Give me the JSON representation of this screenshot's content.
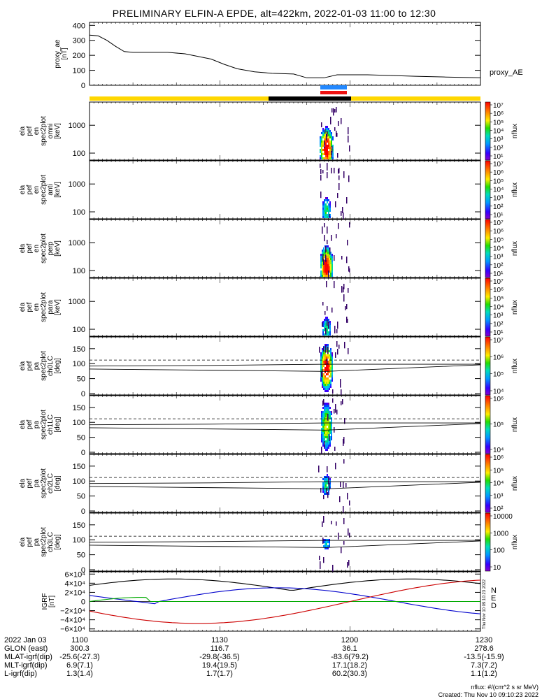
{
  "title": "PRELIMINARY ELFIN-A EPDE, alt=422km, 2022-01-03 11:00 to 12:30",
  "chart_data": {
    "type": "line",
    "time_range": [
      "11:00",
      "12:30"
    ],
    "panels": [
      {
        "id": "proxy_ae",
        "ylabel": [
          "proxy_ae",
          "[nT]"
        ],
        "yticks": [
          0,
          100,
          200,
          300,
          400
        ],
        "ylim": [
          0,
          420
        ],
        "series_label": "proxy_AE",
        "series": [
          {
            "name": "proxy_AE",
            "x": [
              0,
              2,
              4,
              6,
              8,
              10,
              13,
              18,
              22,
              28,
              31,
              34,
              38,
              42,
              47,
              50,
              52,
              54,
              57,
              64,
              70,
              75,
              82,
              90
            ],
            "y": [
              335,
              330,
              300,
              260,
              225,
              220,
              220,
              220,
              210,
              175,
              140,
              110,
              90,
              80,
              75,
              50,
              50,
              50,
              70,
              70,
              65,
              60,
              55,
              50
            ]
          }
        ]
      },
      {
        "id": "omni",
        "ylabel": [
          "ela",
          "pef",
          "en",
          "spec2plot",
          "omni",
          "[keV]"
        ],
        "yticks": [
          "100",
          "1000"
        ],
        "colorbar": {
          "label": "nflux",
          "ticks": [
            "10¹",
            "10²",
            "10³",
            "10⁴",
            "10⁵",
            "10⁶",
            "10⁷"
          ]
        }
      },
      {
        "id": "anti",
        "ylabel": [
          "ela",
          "pef",
          "en",
          "spec2plot",
          "anti",
          "[keV]"
        ],
        "yticks": [
          "100",
          "1000"
        ],
        "colorbar": {
          "label": "nflux",
          "ticks": [
            "10¹",
            "10²",
            "10³",
            "10⁴",
            "10⁵",
            "10⁶",
            "10⁷"
          ]
        }
      },
      {
        "id": "perp",
        "ylabel": [
          "ela",
          "pef",
          "en",
          "spec2plot",
          "perp",
          "[keV]"
        ],
        "yticks": [
          "100",
          "1000"
        ],
        "colorbar": {
          "label": "nflux",
          "ticks": [
            "10¹",
            "10²",
            "10³",
            "10⁴",
            "10⁵",
            "10⁶",
            "10⁷"
          ]
        }
      },
      {
        "id": "para",
        "ylabel": [
          "ela",
          "pef",
          "en",
          "spec2plot",
          "para",
          "[keV]"
        ],
        "yticks": [
          "100",
          "1000"
        ],
        "colorbar": {
          "label": "nflux",
          "ticks": [
            "10¹",
            "10²",
            "10³",
            "10⁴",
            "10⁵",
            "10⁶",
            "10⁷"
          ]
        }
      },
      {
        "id": "ch0LC",
        "ylabel": [
          "ela",
          "pef",
          "pa",
          "spec2plot",
          "ch0LC",
          "[deg]"
        ],
        "yticks": [
          "0",
          "50",
          "100",
          "150"
        ],
        "colorbar": {
          "label": "nflux",
          "ticks": [
            "10⁴",
            "10⁵",
            "10⁶",
            "10⁷"
          ]
        }
      },
      {
        "id": "ch1LC",
        "ylabel": [
          "ela",
          "pef",
          "pa",
          "spec2plot",
          "ch1LC",
          "[deg]"
        ],
        "yticks": [
          "0",
          "50",
          "100",
          "150"
        ],
        "colorbar": {
          "label": "nflux",
          "ticks": [
            "10⁴",
            "10⁵",
            "10⁶"
          ]
        }
      },
      {
        "id": "ch2LC",
        "ylabel": [
          "ela",
          "pef",
          "pa",
          "spec2plot",
          "ch2LC",
          "[deg]"
        ],
        "yticks": [
          "0",
          "50",
          "100",
          "150"
        ],
        "colorbar": {
          "label": "nflux",
          "ticks": [
            "10²",
            "10³",
            "10⁴",
            "10⁵",
            "10⁶"
          ]
        }
      },
      {
        "id": "ch3LC",
        "ylabel": [
          "ela",
          "pef",
          "pa",
          "spec2plot",
          "ch3LC",
          "[deg]"
        ],
        "yticks": [
          "0",
          "50",
          "100",
          "150"
        ],
        "colorbar": {
          "label": "nflux",
          "ticks": [
            "10",
            "100",
            "1000",
            "10000"
          ]
        }
      },
      {
        "id": "igrf",
        "ylabel": [
          "IGRF",
          "[nT]"
        ],
        "yticks": [
          "−6×10⁴",
          "−4×10⁴",
          "−2×10⁴",
          "0",
          "2×10⁴",
          "4×10⁴",
          "6×10⁴"
        ],
        "ylim": [
          -65000,
          65000
        ],
        "legend": [
          "N",
          "E",
          "D"
        ],
        "legend_colors": [
          "#0000cc",
          "#00aa00",
          "#cc0000"
        ]
      }
    ]
  },
  "footer": {
    "rows": [
      {
        "label": "2022 Jan 03",
        "values": [
          "1100",
          "1130",
          "1200",
          "1230"
        ]
      },
      {
        "label": "GLON (east)",
        "values": [
          "300.3",
          "116.7",
          "36.1",
          "278.6"
        ]
      },
      {
        "label": "MLAT-igrf(dip)",
        "values": [
          "-25.6(-27.3)",
          "-29.8(-36.5)",
          "-83.6(79.2)",
          "-13.5(-15.9)"
        ]
      },
      {
        "label": "MLT-igrf(dip)",
        "values": [
          "6.9(7.1)",
          "19.4(19.5)",
          "17.1(18.2)",
          "7.3(7.2)"
        ]
      },
      {
        "label": "L-igrf(dip)",
        "values": [
          "1.3(1.4)",
          "1.7(1.7)",
          "60.2(30.3)",
          "1.1(1.2)"
        ]
      }
    ],
    "units_note": "nflux: #/(cm^2 s sr MeV)",
    "created": "Created: Thu Nov 10 09:10:23 2022",
    "side_stamp": "Thu Nov 10 09:10:23 2022"
  },
  "colors": {
    "yellow_bar": "#ffd700",
    "black_bar": "#000000",
    "blue_bar": "#2288ff",
    "red_bar": "#ee1111",
    "n_line": "#0000cc",
    "e_line": "#00aa00",
    "d_line": "#cc0000"
  }
}
